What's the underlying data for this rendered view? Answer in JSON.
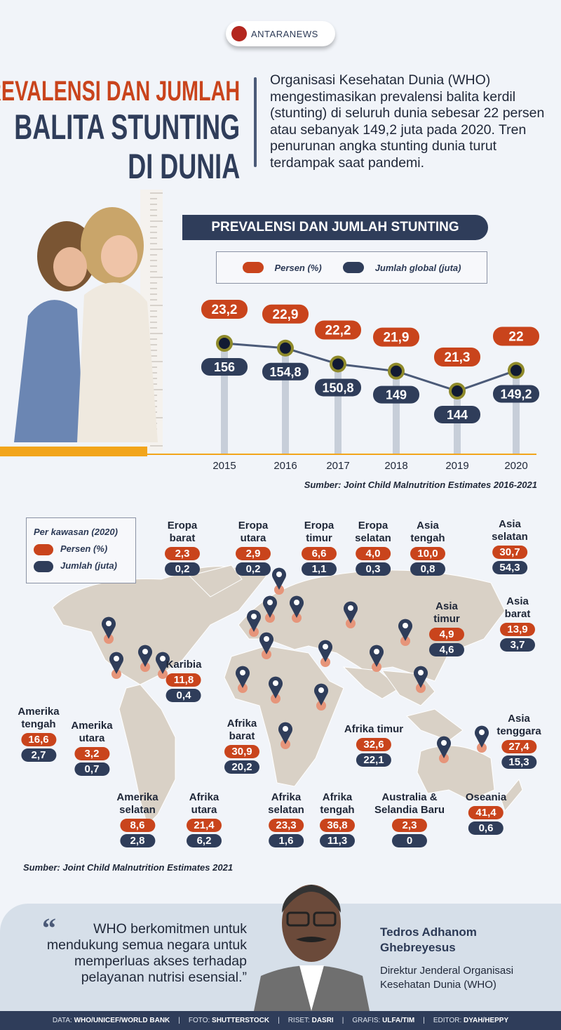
{
  "brand": {
    "logo_text": "ANTARANEWS"
  },
  "header": {
    "title_line1": "PREVALENSI DAN JUMLAH",
    "title_line2": "BALITA STUNTING",
    "title_line3": "DI DUNIA",
    "intro": "Organisasi Kesehatan Dunia (WHO) mengestimasikan prevalensi balita kerdil (stunting) di seluruh dunia sebesar 22 persen atau sebanyak 149,2 juta pada 2020. Tren penurunan angka stunting dunia turut terdampak saat pandemi."
  },
  "colors": {
    "orange": "#c9441c",
    "navy": "#2f3d5a",
    "land": "#d9d1c6",
    "accent_bar": "#f2a51b"
  },
  "chart_data": {
    "type": "line",
    "title": "PREVALENSI DAN JUMLAH STUNTING",
    "x": [
      "2015",
      "2016",
      "2017",
      "2018",
      "2019",
      "2020"
    ],
    "series": [
      {
        "name": "Persen (%)",
        "values": [
          23.2,
          22.9,
          22.2,
          21.9,
          21.3,
          22
        ],
        "labels": [
          "23,2",
          "22,9",
          "22,2",
          "21,9",
          "21,3",
          "22"
        ]
      },
      {
        "name": "Jumlah global (juta)",
        "values": [
          156,
          154.8,
          150.8,
          149,
          144,
          149.2
        ],
        "labels": [
          "156",
          "154,8",
          "150,8",
          "149",
          "144",
          "149,2"
        ]
      }
    ],
    "grid": false,
    "legend": "top",
    "source": "Sumber: Joint Child Malnutrition Estimates 2016-2021"
  },
  "map": {
    "legend_title": "Per kawasan (2020)",
    "legend_persen": "Persen (%)",
    "legend_jumlah": "Jumlah (juta)",
    "regions": [
      {
        "name": "Eropa barat",
        "persen": "2,3",
        "jumlah": "0,2"
      },
      {
        "name": "Eropa utara",
        "persen": "2,9",
        "jumlah": "0,2"
      },
      {
        "name": "Eropa timur",
        "persen": "6,6",
        "jumlah": "1,1"
      },
      {
        "name": "Eropa selatan",
        "persen": "4,0",
        "jumlah": "0,3"
      },
      {
        "name": "Asia tengah",
        "persen": "10,0",
        "jumlah": "0,8"
      },
      {
        "name": "Asia selatan",
        "persen": "30,7",
        "jumlah": "54,3"
      },
      {
        "name": "Asia barat",
        "persen": "13,9",
        "jumlah": "3,7"
      },
      {
        "name": "Asia timur",
        "persen": "4,9",
        "jumlah": "4,6"
      },
      {
        "name": "Karibia",
        "persen": "11,8",
        "jumlah": "0,4"
      },
      {
        "name": "Amerika tengah",
        "persen": "16,6",
        "jumlah": "2,7"
      },
      {
        "name": "Amerika utara",
        "persen": "3,2",
        "jumlah": "0,7"
      },
      {
        "name": "Afrika barat",
        "persen": "30,9",
        "jumlah": "20,2"
      },
      {
        "name": "Afrika timur",
        "persen": "32,6",
        "jumlah": "22,1"
      },
      {
        "name": "Asia tenggara",
        "persen": "27,4",
        "jumlah": "15,3"
      },
      {
        "name": "Amerika selatan",
        "persen": "8,6",
        "jumlah": "2,8"
      },
      {
        "name": "Afrika utara",
        "persen": "21,4",
        "jumlah": "6,2"
      },
      {
        "name": "Afrika selatan",
        "persen": "23,3",
        "jumlah": "1,6"
      },
      {
        "name": "Afrika tengah",
        "persen": "36,8",
        "jumlah": "11,3"
      },
      {
        "name": "Australia & Selandia Baru",
        "persen": "2,3",
        "jumlah": "0"
      },
      {
        "name": "Oseania",
        "persen": "41,4",
        "jumlah": "0,6"
      }
    ],
    "source": "Sumber: Joint Child Malnutrition Estimates 2021"
  },
  "quote": {
    "text": "WHO berkomitmen untuk mendukung semua negara untuk memperluas akses terhadap pelayanan nutrisi esensial.”",
    "name": "Tedros Adhanom Ghebreyesus",
    "role": "Direktur Jenderal Organisasi Kesehatan Dunia (WHO)"
  },
  "footer": [
    {
      "k": "DATA:",
      "v": "WHO/UNICEF/WORLD BANK"
    },
    {
      "k": "FOTO:",
      "v": "SHUTTERSTOCK"
    },
    {
      "k": "RISET:",
      "v": "DASRI"
    },
    {
      "k": "GRAFIS:",
      "v": "ULFA/TIM"
    },
    {
      "k": "EDITOR:",
      "v": "DYAH/HEPPY"
    }
  ]
}
